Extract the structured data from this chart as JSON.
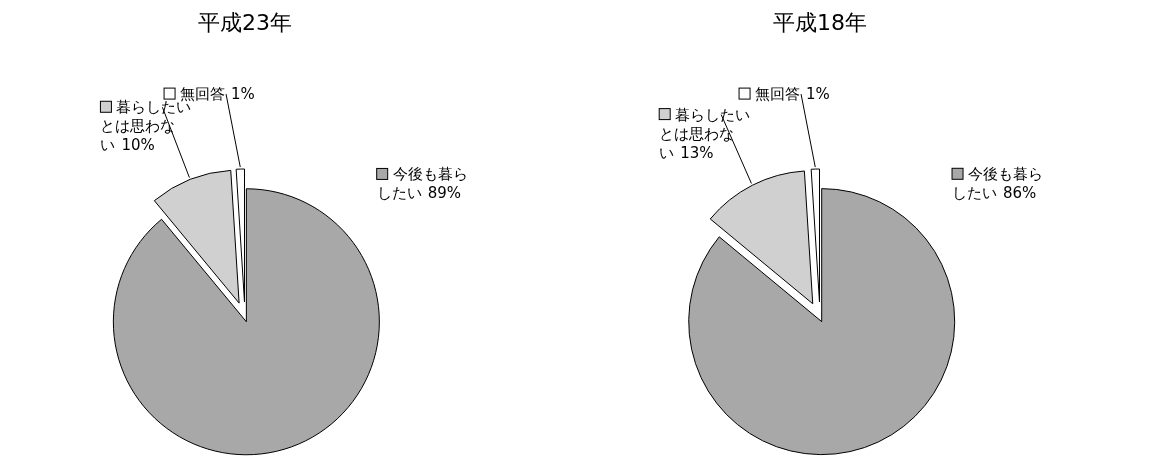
{
  "chart_data": [
    {
      "type": "pie",
      "title": "平成23年",
      "categories": [
        "今後も暮らしたい",
        "暮らしたいとは思わない",
        "無回答"
      ],
      "values": [
        89,
        10,
        1
      ],
      "value_labels": [
        "89%",
        "10%",
        "1%"
      ],
      "colors": [
        "#a8a8a8",
        "#d0d0d0",
        "#ffffff"
      ],
      "legend": "top right"
    },
    {
      "type": "pie",
      "title": "平成18年",
      "categories": [
        "今後も暮らしたい",
        "暮らしたいとは思わない",
        "無回答"
      ],
      "values": [
        86,
        13,
        1
      ],
      "value_labels": [
        "86%",
        "13%",
        "1%"
      ],
      "colors": [
        "#a8a8a8",
        "#d0d0d0",
        "#ffffff"
      ],
      "legend": "top right"
    }
  ]
}
